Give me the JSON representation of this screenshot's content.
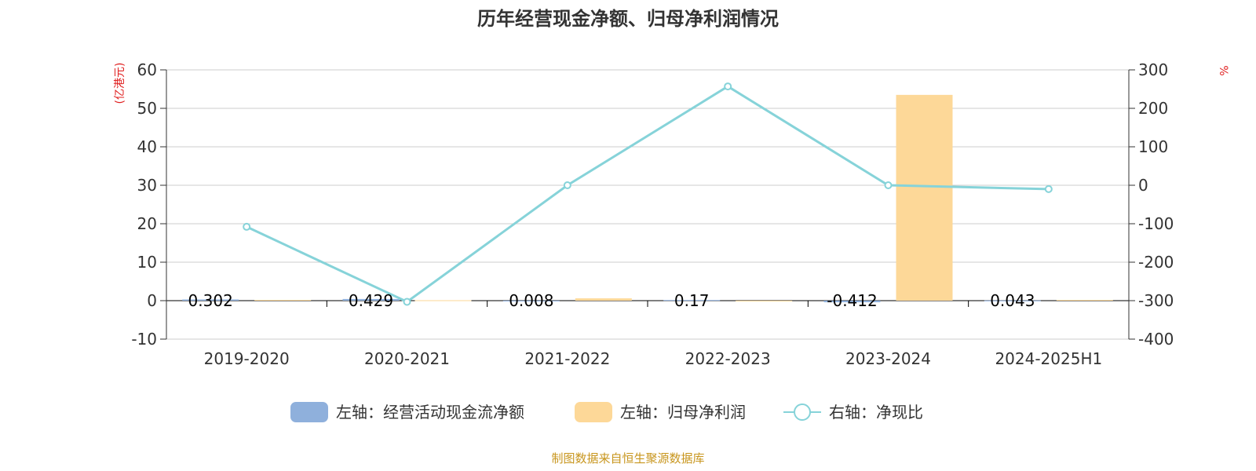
{
  "chart_data": {
    "type": "bar",
    "title": "历年经营现金净额、归母净利润情况",
    "categories": [
      "2019-2020",
      "2020-2021",
      "2021-2022",
      "2022-2023",
      "2023-2024",
      "2024-2025H1"
    ],
    "left_axis": {
      "unit": "(亿港元)",
      "ylim": [
        -10,
        60
      ],
      "ticks": [
        -10,
        0,
        10,
        20,
        30,
        40,
        50,
        60
      ]
    },
    "right_axis": {
      "unit": "%",
      "ylim": [
        -400,
        300
      ],
      "ticks": [
        -400,
        -300,
        -200,
        -100,
        0,
        100,
        200,
        300
      ]
    },
    "grid": true,
    "legend_position": "bottom",
    "series": [
      {
        "name": "左轴：经营活动现金流净额",
        "type": "bar",
        "axis": "left",
        "color": "#8fb0dc",
        "values": [
          0.302,
          0.429,
          0.008,
          0.17,
          -0.412,
          0.043
        ],
        "labels": [
          "0.302",
          "0.429",
          "0.008",
          "0.17",
          "-0.412",
          "0.043"
        ]
      },
      {
        "name": "左轴：归母净利润",
        "type": "bar",
        "axis": "left",
        "color": "#fdd898",
        "values": [
          0.2,
          0.1,
          0.6,
          -0.1,
          53.5,
          0.2
        ]
      },
      {
        "name": "右轴：净现比",
        "type": "line",
        "axis": "right",
        "color": "#86d3d9",
        "values": [
          -108,
          -303,
          0,
          257,
          0,
          -10
        ]
      }
    ],
    "source": "制图数据来自恒生聚源数据库"
  }
}
